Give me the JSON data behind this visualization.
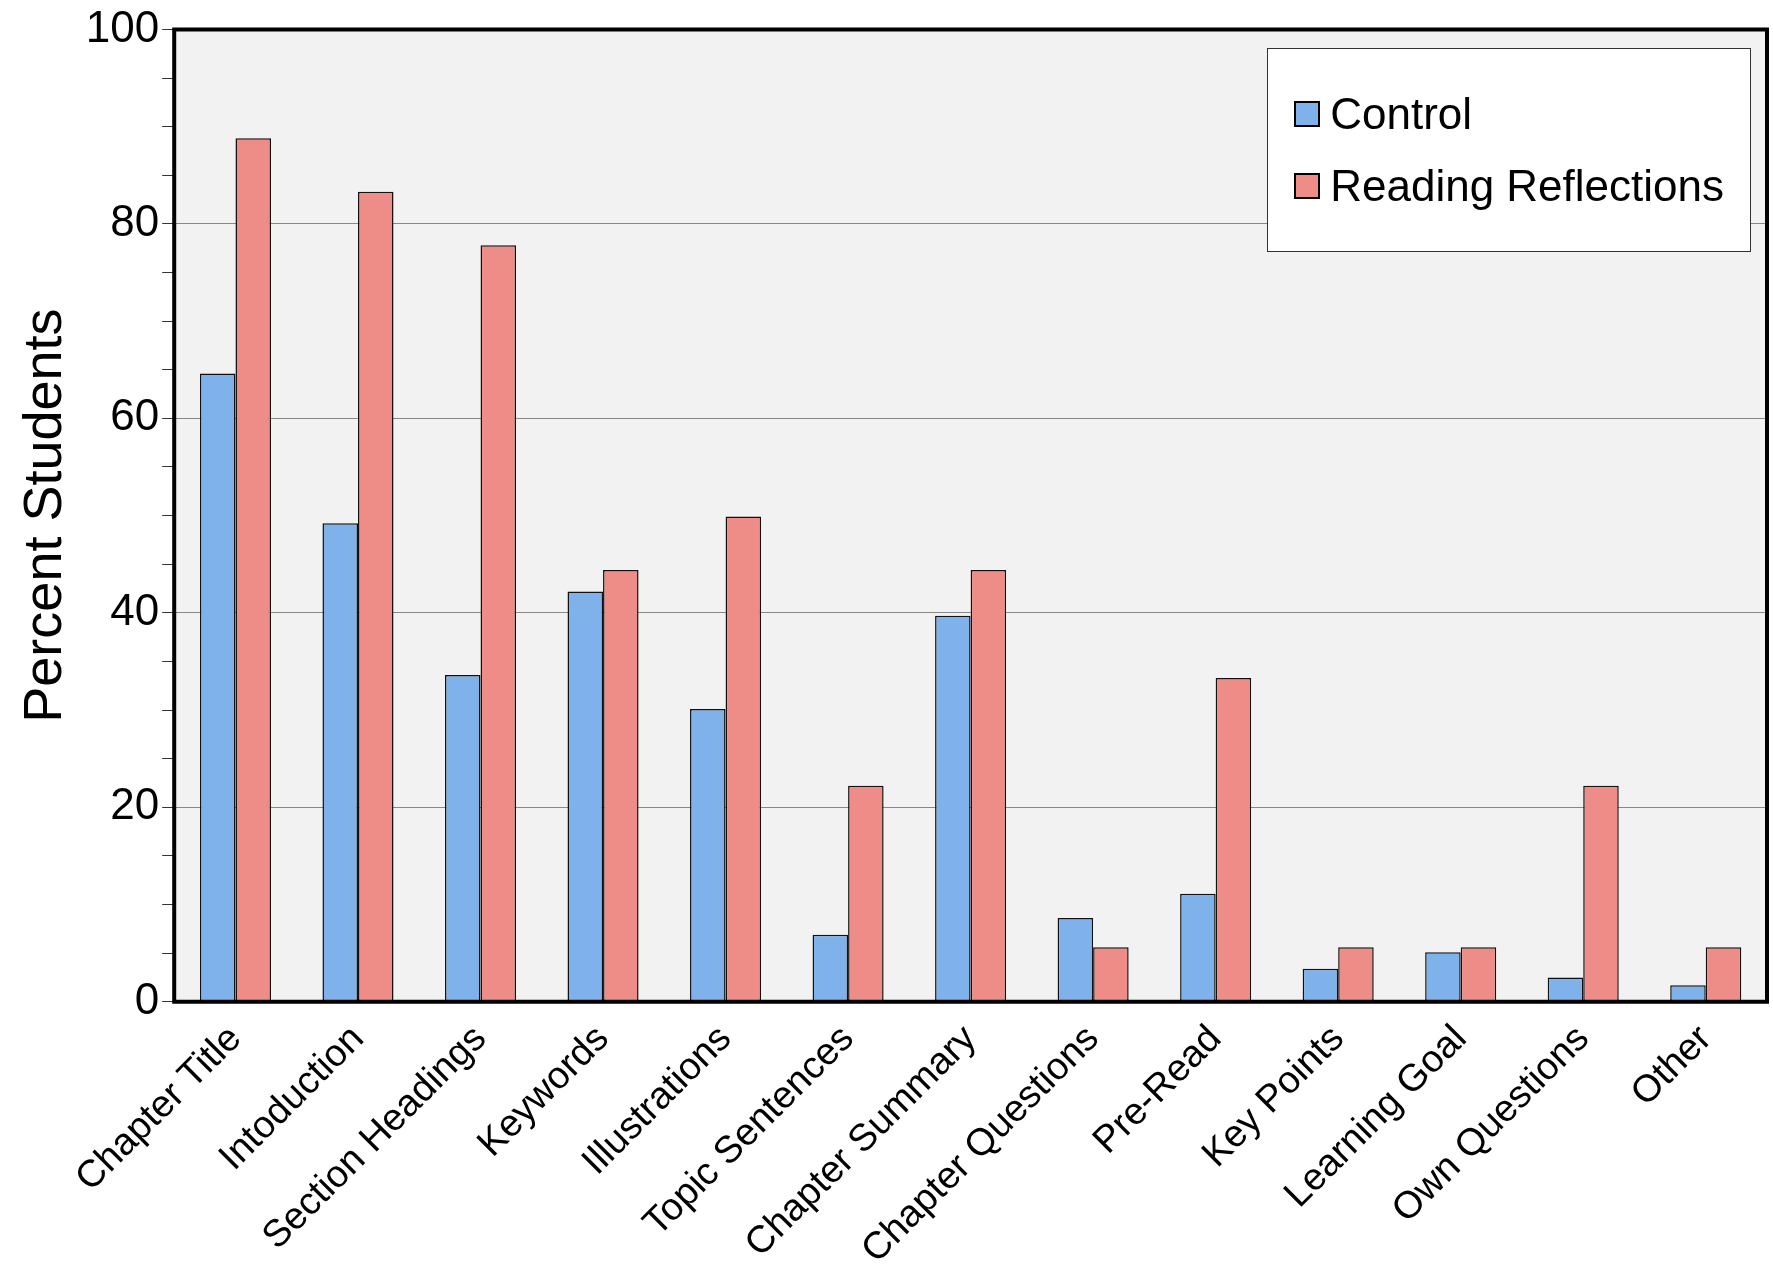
{
  "chart_data": {
    "type": "bar",
    "ylabel": "Percent Students",
    "categories": [
      "Chapter Title",
      "Intoduction",
      "Section Headings",
      "Keywords",
      "Illustrations",
      "Topic Sentences",
      "Chapter Summary",
      "Chapter Questions",
      "Pre-Read",
      "Key Points",
      "Learning Goal",
      "Own Questions",
      "Other"
    ],
    "series": [
      {
        "name": "Control",
        "color": "#7fb2ea",
        "values": [
          64.6,
          49.2,
          33.6,
          42.2,
          30.1,
          6.9,
          39.7,
          8.6,
          11.1,
          3.4,
          5.1,
          2.5,
          1.7
        ]
      },
      {
        "name": "Reading Reflections",
        "color": "#ee8d88",
        "values": [
          88.8,
          83.3,
          77.8,
          44.4,
          49.9,
          22.2,
          44.4,
          5.6,
          33.3,
          5.6,
          5.6,
          22.2,
          5.6
        ]
      }
    ],
    "ylim": [
      0,
      100
    ],
    "yticks": [
      0,
      {
        "value": 5,
        "label": null
      },
      {
        "value": 10,
        "label": null
      },
      {
        "value": 15,
        "label": null
      },
      20,
      {
        "value": 25,
        "label": null
      },
      {
        "value": 30,
        "label": null
      },
      {
        "value": 35,
        "label": null
      },
      40,
      {
        "value": 45,
        "label": null
      },
      {
        "value": 50,
        "label": null
      },
      {
        "value": 55,
        "label": null
      },
      60,
      {
        "value": 65,
        "label": null
      },
      {
        "value": 70,
        "label": null
      },
      {
        "value": 75,
        "label": null
      },
      80,
      {
        "value": 85,
        "label": null
      },
      {
        "value": 90,
        "label": null
      },
      {
        "value": 95,
        "label": null
      },
      100
    ],
    "grid": "y",
    "legend": "top right"
  }
}
